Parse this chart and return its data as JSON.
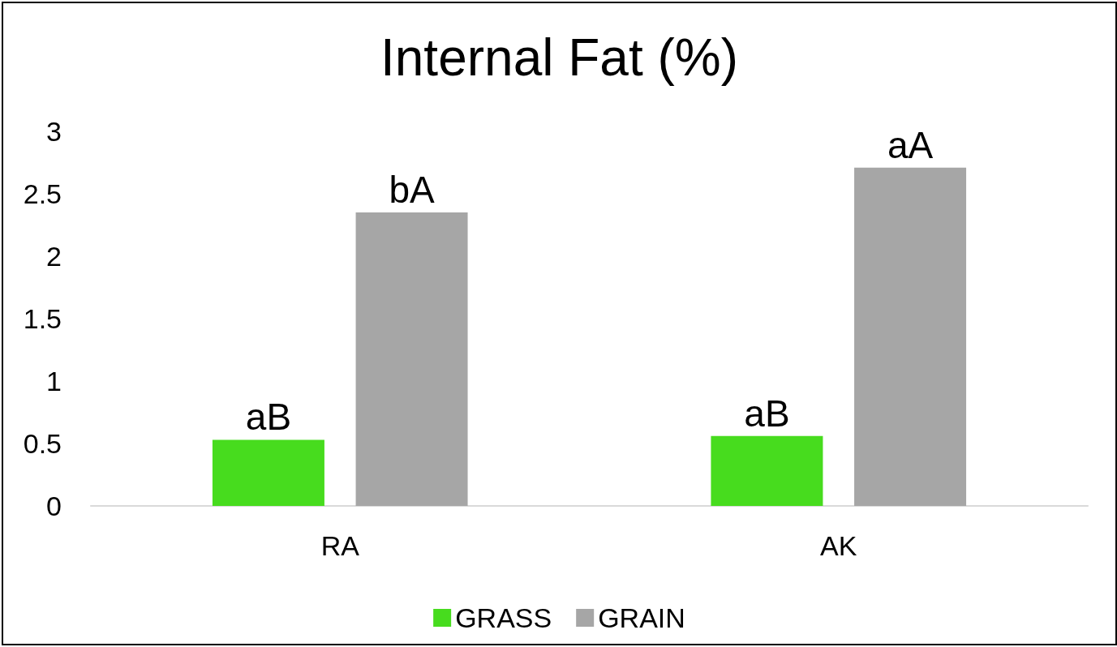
{
  "chart_data": {
    "type": "bar",
    "title": "Internal Fat (%)",
    "categories": [
      "RA",
      "AK"
    ],
    "series": [
      {
        "name": "GRASS",
        "color": "#47dc1e",
        "values": [
          0.53,
          0.56
        ],
        "value_labels": [
          "aB",
          "aB"
        ]
      },
      {
        "name": "GRAIN",
        "color": "#a6a6a6",
        "values": [
          2.35,
          2.71
        ],
        "value_labels": [
          "bA",
          "aA"
        ]
      }
    ],
    "ylim": [
      0,
      3
    ],
    "yticks": [
      0,
      0.5,
      1,
      1.5,
      2,
      2.5,
      3
    ],
    "grid": false,
    "legend": "bottom"
  }
}
